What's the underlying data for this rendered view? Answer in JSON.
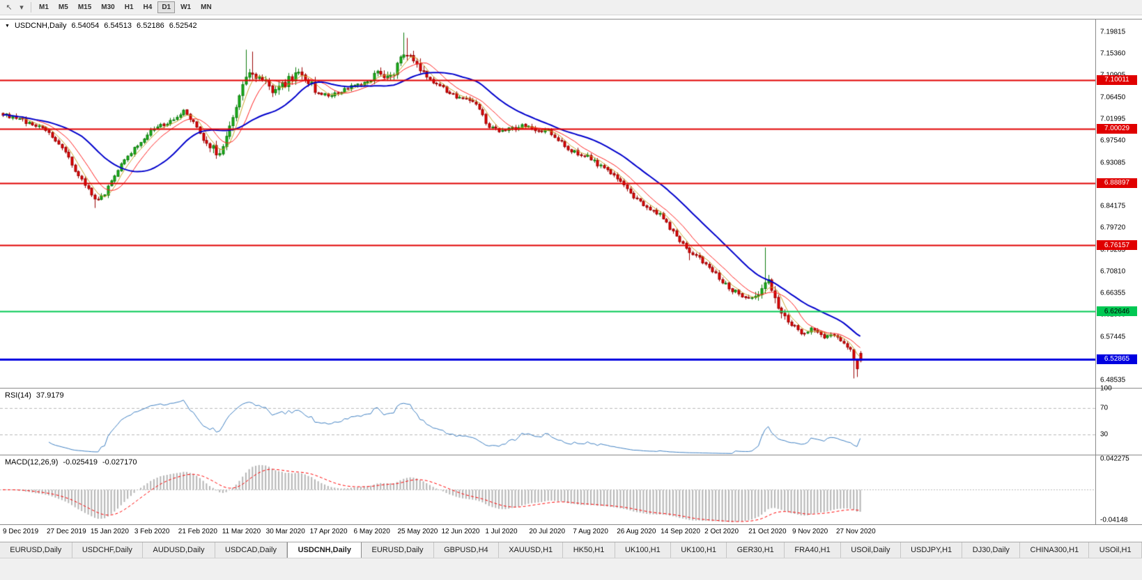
{
  "toolbar": {
    "icons": [
      {
        "name": "cursor-icon",
        "glyph": "↖"
      },
      {
        "name": "dropdown-arrow-icon",
        "glyph": "▾"
      }
    ],
    "timeframes": [
      "M1",
      "M5",
      "M15",
      "M30",
      "H1",
      "H4",
      "D1",
      "W1",
      "MN"
    ],
    "active_timeframe": "D1"
  },
  "chart": {
    "symbol_header": {
      "marker": "▼",
      "symbol": "USDCNH,Daily",
      "open": "6.54054",
      "high": "6.54513",
      "low": "6.52186",
      "close": "6.52542"
    },
    "price_ticks": [
      "7.19815",
      "7.15360",
      "7.10905",
      "7.06450",
      "7.01995",
      "6.97540",
      "6.93085",
      "6.88630",
      "6.84175",
      "6.79720",
      "6.75265",
      "6.70810",
      "6.66355",
      "6.61900",
      "6.57445",
      "6.52990",
      "6.48535"
    ],
    "hlines": [
      {
        "price": 7.10011,
        "label": "7.10011",
        "color": "#e00000",
        "text_color": "#ffffff",
        "width": 2
      },
      {
        "price": 7.00029,
        "label": "7.00029",
        "color": "#e00000",
        "text_color": "#ffffff",
        "width": 2
      },
      {
        "price": 6.88897,
        "label": "6.88897",
        "color": "#e00000",
        "text_color": "#ffffff",
        "width": 2
      },
      {
        "price": 6.76157,
        "label": "6.76157",
        "color": "#e00000",
        "text_color": "#ffffff",
        "width": 2
      },
      {
        "price": 6.62646,
        "label": "6.62646",
        "color": "#00c853",
        "text_color": "#000000",
        "width": 2
      },
      {
        "price": 6.52865,
        "label": "6.52865",
        "color": "#0000e0",
        "text_color": "#ffffff",
        "width": 3
      }
    ],
    "dates": [
      "9 Dec 2019",
      "27 Dec 2019",
      "15 Jan 2020",
      "3 Feb 2020",
      "21 Feb 2020",
      "11 Mar 2020",
      "30 Mar 2020",
      "17 Apr 2020",
      "6 May 2020",
      "25 May 2020",
      "12 Jun 2020",
      "1 Jul 2020",
      "20 Jul 2020",
      "7 Aug 2020",
      "26 Aug 2020",
      "14 Sep 2020",
      "2 Oct 2020",
      "21 Oct 2020",
      "9 Nov 2020",
      "27 Nov 2020"
    ]
  },
  "rsi": {
    "label": "RSI(14)",
    "value": "37.9179",
    "axis_labels": [
      "100",
      "70",
      "30"
    ],
    "axis_values": [
      100,
      70,
      30
    ],
    "upper_level": 70,
    "lower_level": 30,
    "line_color": "#3e7fc1",
    "level_color": "#b8b8b8"
  },
  "macd": {
    "label": "MACD(12,26,9)",
    "macd_value": "-0.025419",
    "signal_value": "-0.027170",
    "axis_top_label": "0.042275",
    "axis_top_value": 0.042275,
    "axis_bottom_label": "-0.04148",
    "axis_bottom_value": -0.04148,
    "histogram_color": "#b4b4b4",
    "signal_color": "#ff0000",
    "zero_line_color": "#b8b8b8"
  },
  "tabs": {
    "active_index": 4,
    "items": [
      "EURUSD,Daily",
      "USDCHF,Daily",
      "AUDUSD,Daily",
      "USDCAD,Daily",
      "USDCNH,Daily",
      "EURUSD,Daily",
      "GBPUSD,H4",
      "XAUUSD,H1",
      "HK50,H1",
      "UK100,H1",
      "UK100,H1",
      "GER30,H1",
      "FRA40,H1",
      "USOil,Daily",
      "USDJPY,H1",
      "DJ30,Daily",
      "CHINA300,H1",
      "USOil,H1"
    ]
  },
  "chart_data": {
    "type": "candlestick",
    "title": "USDCNH Daily",
    "symbol": "USDCNH",
    "timeframe": "Daily",
    "x_first_label": "9 Dec 2019",
    "x_last_label": "27 Nov 2020",
    "y_axis": {
      "top": 7.2252,
      "bottom": 6.4698
    },
    "num_candles": 262,
    "candles_per_label": 13.35,
    "last_candle": {
      "open": 6.54054,
      "high": 6.54513,
      "low": 6.52186,
      "close": 6.52542
    },
    "price_anchors": [
      [
        0,
        7.03
      ],
      [
        6,
        7.018
      ],
      [
        13,
        6.996
      ],
      [
        18,
        6.962
      ],
      [
        23,
        6.903
      ],
      [
        28,
        6.854
      ],
      [
        31,
        6.868
      ],
      [
        35,
        6.916
      ],
      [
        40,
        6.962
      ],
      [
        45,
        6.996
      ],
      [
        50,
        7.012
      ],
      [
        55,
        7.034
      ],
      [
        58,
        7.012
      ],
      [
        62,
        6.968
      ],
      [
        66,
        6.95
      ],
      [
        70,
        7.03
      ],
      [
        75,
        7.12
      ],
      [
        79,
        7.1
      ],
      [
        83,
        7.072
      ],
      [
        87,
        7.1
      ],
      [
        91,
        7.114
      ],
      [
        95,
        7.08
      ],
      [
        99,
        7.064
      ],
      [
        103,
        7.076
      ],
      [
        107,
        7.088
      ],
      [
        111,
        7.096
      ],
      [
        115,
        7.116
      ],
      [
        118,
        7.104
      ],
      [
        121,
        7.14
      ],
      [
        123,
        7.158
      ],
      [
        125,
        7.14
      ],
      [
        128,
        7.112
      ],
      [
        132,
        7.092
      ],
      [
        136,
        7.072
      ],
      [
        140,
        7.062
      ],
      [
        144,
        7.048
      ],
      [
        148,
        7.004
      ],
      [
        152,
        6.996
      ],
      [
        156,
        7.002
      ],
      [
        159,
        7.008
      ],
      [
        162,
        6.992
      ],
      [
        165,
        7.0
      ],
      [
        168,
        6.984
      ],
      [
        173,
        6.954
      ],
      [
        178,
        6.944
      ],
      [
        182,
        6.922
      ],
      [
        186,
        6.906
      ],
      [
        190,
        6.874
      ],
      [
        194,
        6.851
      ],
      [
        200,
        6.824
      ],
      [
        205,
        6.781
      ],
      [
        209,
        6.749
      ],
      [
        213,
        6.729
      ],
      [
        217,
        6.702
      ],
      [
        221,
        6.674
      ],
      [
        227,
        6.652
      ],
      [
        230,
        6.668
      ],
      [
        233,
        6.69
      ],
      [
        236,
        6.624
      ],
      [
        240,
        6.601
      ],
      [
        243,
        6.577
      ],
      [
        246,
        6.592
      ],
      [
        249,
        6.575
      ],
      [
        253,
        6.577
      ],
      [
        256,
        6.56
      ],
      [
        258,
        6.547
      ],
      [
        260,
        6.51
      ],
      [
        261,
        6.5254
      ]
    ],
    "spikes": [
      {
        "i": 28,
        "low": 6.838
      },
      {
        "i": 74,
        "high": 7.162
      },
      {
        "i": 76,
        "high": 7.158
      },
      {
        "i": 122,
        "high": 7.197
      },
      {
        "i": 123,
        "high": 7.186
      },
      {
        "i": 209,
        "low": 6.731
      },
      {
        "i": 232,
        "high": 6.757
      },
      {
        "i": 259,
        "low": 6.489
      },
      {
        "i": 260,
        "low": 6.492
      }
    ],
    "volatile_ranges": [
      [
        62,
        95
      ],
      [
        113,
        128
      ],
      [
        229,
        238
      ]
    ],
    "overlays": [
      {
        "name": "ma-fast",
        "period": 5,
        "color": "#c9a227",
        "width": 1
      },
      {
        "name": "ma-mid",
        "period": 10,
        "color": "#ff2020",
        "width": 1
      },
      {
        "name": "ma-slow",
        "period": 25,
        "color": "#0000cc",
        "width": 2
      }
    ],
    "up_color": "#1cb21c",
    "up_border": "#0b7a0b",
    "down_color": "#e60000",
    "down_border": "#990000",
    "rsi_period": 14,
    "macd_params": [
      12,
      26,
      9
    ]
  }
}
